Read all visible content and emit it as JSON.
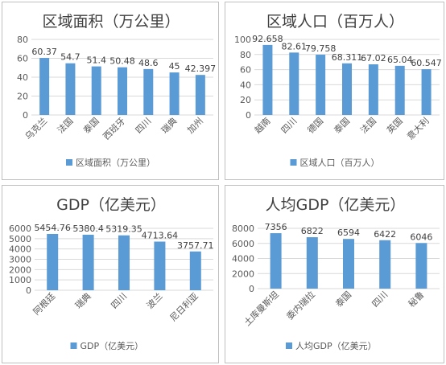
{
  "colors": {
    "bar": "#5b9bd5",
    "grid": "#d9d9d9",
    "text": "#595959",
    "title": "#404040"
  },
  "chart_data": [
    {
      "type": "bar",
      "title": "区域面积（万公里）",
      "categories": [
        "乌克兰",
        "法国",
        "泰国",
        "西班牙",
        "四川",
        "瑞典",
        "加州"
      ],
      "series": [
        {
          "name": "区域面积（万公里）",
          "values": [
            60.37,
            54.7,
            51.4,
            50.48,
            48.6,
            45,
            42.397
          ]
        }
      ],
      "value_labels": [
        "60.37",
        "54.7",
        "51.4",
        "50.48",
        "48.6",
        "45",
        "42.397"
      ],
      "ylim": [
        0,
        80
      ],
      "yticks": [
        0,
        20,
        40,
        60,
        80
      ],
      "grid": true,
      "legend_position": "bottom"
    },
    {
      "type": "bar",
      "title": "区域人口（百万人）",
      "categories": [
        "越南",
        "四川",
        "德国",
        "泰国",
        "法国",
        "英国",
        "意大利"
      ],
      "series": [
        {
          "name": "区域人口（百万人）",
          "values": [
            92.658,
            82.61,
            79.758,
            68.311,
            67.02,
            65.04,
            60.547
          ]
        }
      ],
      "value_labels": [
        "92.658",
        "82.61",
        "79.758",
        "68.311",
        "67.02",
        "65.04",
        "60.547"
      ],
      "ylim": [
        0,
        100
      ],
      "yticks": [
        0,
        20,
        40,
        60,
        80,
        100
      ],
      "grid": true,
      "legend_position": "bottom"
    },
    {
      "type": "bar",
      "title": "GDP（亿美元）",
      "categories": [
        "阿根廷",
        "瑞典",
        "四川",
        "波兰",
        "尼日利亚"
      ],
      "series": [
        {
          "name": "GDP（亿美元）",
          "values": [
            5454.76,
            5380.4,
            5319.35,
            4713.64,
            3757.71
          ]
        }
      ],
      "value_labels": [
        "5454.76",
        "5380.4",
        "5319.35",
        "4713.64",
        "3757.71"
      ],
      "ylim": [
        0,
        6000
      ],
      "yticks": [
        0,
        1000,
        2000,
        3000,
        4000,
        5000,
        6000
      ],
      "grid": true,
      "legend_position": "bottom"
    },
    {
      "type": "bar",
      "title": "人均GDP（亿美元）",
      "categories": [
        "土库曼斯坦",
        "委内瑞拉",
        "泰国",
        "四川",
        "秘鲁"
      ],
      "series": [
        {
          "name": "人均GDP（亿美元）",
          "values": [
            7356,
            6822,
            6594,
            6422,
            6046
          ]
        }
      ],
      "value_labels": [
        "7356",
        "6822",
        "6594",
        "6422",
        "6046"
      ],
      "ylim": [
        0,
        8000
      ],
      "yticks": [
        0,
        2000,
        4000,
        6000,
        8000
      ],
      "grid": true,
      "legend_position": "bottom"
    }
  ]
}
